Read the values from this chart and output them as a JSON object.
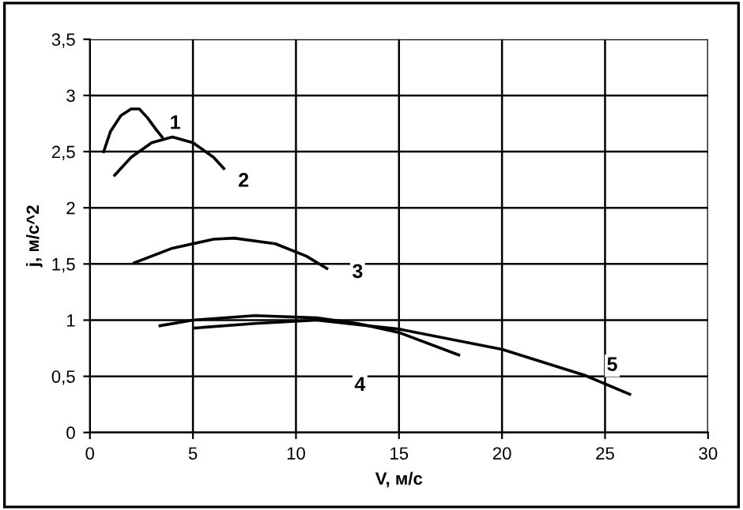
{
  "chart_data": {
    "type": "line",
    "xlabel": "V, м/с",
    "ylabel": "j, м/с^2",
    "xlim": [
      0,
      30
    ],
    "xticks": [
      0,
      5,
      10,
      15,
      20,
      25,
      30
    ],
    "ylim": [
      0,
      3.5
    ],
    "yticks": [
      0,
      {
        "value": 0.5,
        "label": "0,5"
      },
      1,
      {
        "value": 1.5,
        "label": "1,5"
      },
      2,
      {
        "value": 2.5,
        "label": "2,5"
      },
      3,
      {
        "value": 3.5,
        "label": "3,5"
      }
    ],
    "grid": true,
    "marker": "none",
    "line_style": "solid",
    "series": [
      {
        "name": "1",
        "color": "#000000",
        "x": [
          0.67,
          1.0,
          1.5,
          2.0,
          2.4,
          2.8,
          3.2,
          3.5
        ],
        "values": [
          2.5,
          2.68,
          2.82,
          2.88,
          2.88,
          2.8,
          2.7,
          2.63
        ]
      },
      {
        "name": "2",
        "color": "#000000",
        "x": [
          1.2,
          2,
          3,
          4,
          5,
          6,
          6.5
        ],
        "values": [
          2.29,
          2.45,
          2.58,
          2.63,
          2.58,
          2.45,
          2.35
        ]
      },
      {
        "name": "3",
        "color": "#000000",
        "x": [
          2.15,
          4,
          6,
          7,
          9,
          10.5,
          11.5
        ],
        "values": [
          1.51,
          1.64,
          1.72,
          1.73,
          1.68,
          1.57,
          1.46
        ]
      },
      {
        "name": "4",
        "color": "#000000",
        "x": [
          3.4,
          5,
          8,
          11,
          13,
          15,
          17.9
        ],
        "values": [
          0.95,
          1.0,
          1.04,
          1.02,
          0.97,
          0.89,
          0.69
        ]
      },
      {
        "name": "5",
        "color": "#000000",
        "x": [
          5.1,
          8,
          11,
          15,
          20,
          24,
          26.2
        ],
        "values": [
          0.93,
          0.97,
          1.0,
          0.92,
          0.74,
          0.51,
          0.34
        ]
      }
    ]
  }
}
